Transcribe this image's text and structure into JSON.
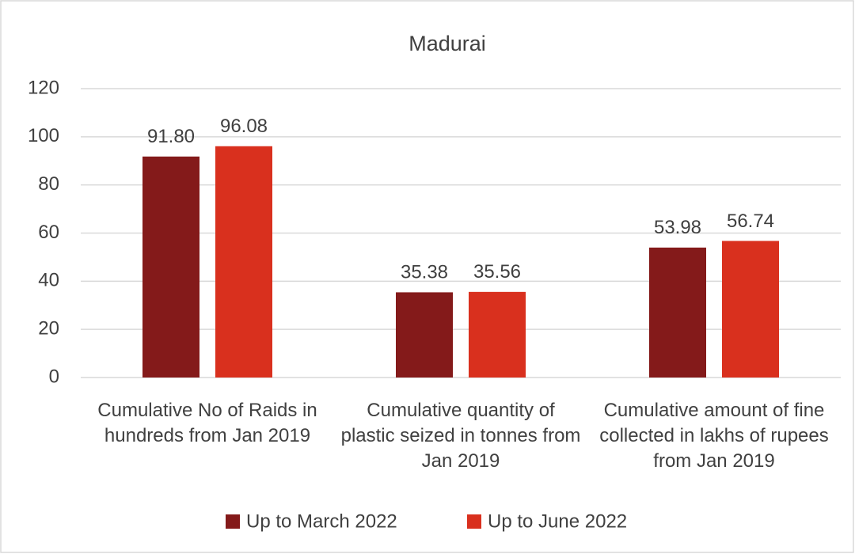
{
  "chart_data": {
    "type": "bar",
    "title": "Madurai",
    "categories": [
      "Cumulative No of Raids in hundreds from Jan 2019",
      "Cumulative quantity of plastic seized in tonnes from Jan 2019",
      "Cumulative amount of fine collected in lakhs of rupees from Jan 2019"
    ],
    "series": [
      {
        "name": "Up to March 2022",
        "color": "#841a1a",
        "values": [
          91.8,
          35.38,
          53.98
        ],
        "value_labels": [
          "91.80",
          "35.38",
          "53.98"
        ]
      },
      {
        "name": "Up to June 2022",
        "color": "#d9301e",
        "values": [
          96.08,
          35.56,
          56.74
        ],
        "value_labels": [
          "96.08",
          "35.56",
          "56.74"
        ]
      }
    ],
    "ylim": [
      0,
      120
    ],
    "yticks": [
      0,
      20,
      40,
      60,
      80,
      100,
      120
    ],
    "grid": true,
    "legend": "bottom"
  }
}
